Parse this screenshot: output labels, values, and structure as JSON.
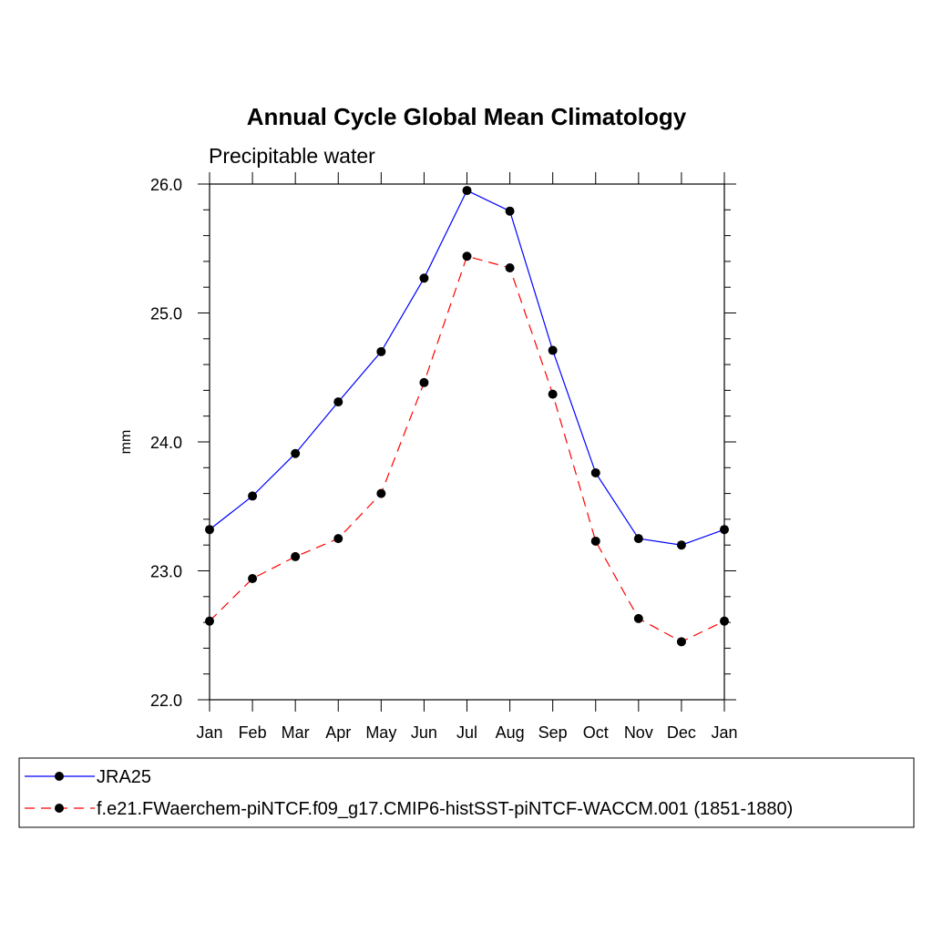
{
  "chart_data": {
    "type": "line",
    "title": "Annual Cycle Global Mean Climatology",
    "subtitle": "Precipitable water",
    "xlabel": "",
    "ylabel": "mm",
    "categories": [
      "Jan",
      "Feb",
      "Mar",
      "Apr",
      "May",
      "Jun",
      "Jul",
      "Aug",
      "Sep",
      "Oct",
      "Nov",
      "Dec",
      "Jan"
    ],
    "ylim": [
      22.0,
      26.0
    ],
    "yticks": [
      "22.0",
      "23.0",
      "24.0",
      "25.0",
      "26.0"
    ],
    "grid": false,
    "legend_position": "bottom",
    "series": [
      {
        "name": "JRA25",
        "color": "#0000ff",
        "dash": "solid",
        "marker": "filled-circle",
        "values": [
          23.32,
          23.58,
          23.91,
          24.31,
          24.7,
          25.27,
          25.95,
          25.79,
          24.71,
          23.76,
          23.25,
          23.2,
          23.32
        ]
      },
      {
        "name": "f.e21.FWaerchem-piNTCF.f09_g17.CMIP6-histSST-piNTCF-WACCM.001 (1851-1880)",
        "color": "#ff0000",
        "dash": "dashed",
        "marker": "filled-circle",
        "values": [
          22.61,
          22.94,
          23.11,
          23.25,
          23.6,
          24.46,
          25.44,
          25.35,
          24.37,
          23.23,
          22.63,
          22.45,
          22.61
        ]
      }
    ]
  }
}
